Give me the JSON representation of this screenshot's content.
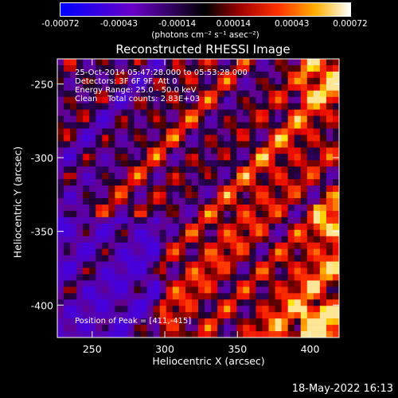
{
  "colorbar": {
    "tick_labels": [
      "-0.00072",
      "-0.00043",
      "-0.00014",
      "0.00014",
      "0.00043",
      "0.00072"
    ],
    "tick_values": [
      -0.00072,
      -0.00043,
      -0.00014,
      0.00014,
      0.00043,
      0.00072
    ],
    "range": [
      -0.00072,
      0.00072
    ],
    "unit": "(photons cm⁻² s⁻¹ asec⁻²)"
  },
  "chart_data": {
    "type": "heatmap",
    "title": "Reconstructed RHESSI Image",
    "xlabel": "Heliocentric X (arcsec)",
    "ylabel": "Heliocentric Y (arcsec)",
    "xlim": [
      226,
      420
    ],
    "ylim": [
      -422,
      -233
    ],
    "x_ticks": [
      250,
      300,
      350,
      400
    ],
    "y_ticks": [
      -250,
      -300,
      -350,
      -400
    ],
    "peak_position": [
      411,
      -415
    ],
    "info_lines": [
      "25-Oct-2014 05:47:28.000 to 05:53:28.000",
      "Detectors: 3F 6F 9F, Att 0",
      "Energy Range: 25.0 - 50.0 keV",
      "Clean    Total counts: 2.83E+03"
    ],
    "peak_label": "Position of Peak = [411,-415]"
  },
  "footer": {
    "date": "18-May-2022 16:13"
  }
}
